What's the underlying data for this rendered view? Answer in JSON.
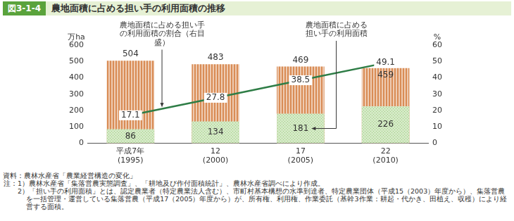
{
  "chart_data": {
    "type": "bar",
    "figure_number": "図3-1-4",
    "title": "農地面積に占める担い手の利用面積の推移",
    "categories": [
      [
        "平成7年",
        "(1995)"
      ],
      [
        "12",
        "(2000)"
      ],
      [
        "17",
        "(2005)"
      ],
      [
        "22",
        "(2010)"
      ]
    ],
    "series": [
      {
        "type": "bar",
        "color": "#d98c55",
        "values": [
          504,
          483,
          469,
          459
        ]
      },
      {
        "name": "農地面積に占める担い手の利用面積",
        "type": "bar",
        "color": "#9fcf80",
        "values": [
          86,
          134,
          181,
          226
        ]
      },
      {
        "name": "農地面積に占める担い手の利用面積の割合（右目盛）",
        "type": "line",
        "axis": "y2",
        "color": "#2e7d46",
        "values": [
          17.1,
          27.8,
          38.5,
          49.1
        ]
      }
    ],
    "ylabel": "万ha",
    "y2label": "%",
    "ylim": [
      0,
      600
    ],
    "yticks": [
      0,
      100,
      200,
      300,
      400,
      500,
      600
    ],
    "y2lim": [
      0,
      60
    ],
    "y2ticks": [
      0,
      10,
      20,
      30,
      40,
      50,
      60
    ],
    "grid": false,
    "data_labels": true
  },
  "source": "資料：農林水産省「農業経営構造の変化」",
  "notes_label": "注：",
  "notes": [
    "1）農林水産省「集落営農実態調査」、「耕地及び作付面積統計」、農林水産省調べにより作成。",
    "2）「担い手の利用面積」とは、認定農業者（特定農業法人含む）、市町村基本構想の水準到達者、特定農業団体（平成15（2003）年度から）、集落営農を一括管理・運営している集落営農（平成17（2005）年度から）が、所有権、利用権、作業委託（基幹3作業：耕起・代かき、田植え、収穫）により経営する面積。"
  ]
}
